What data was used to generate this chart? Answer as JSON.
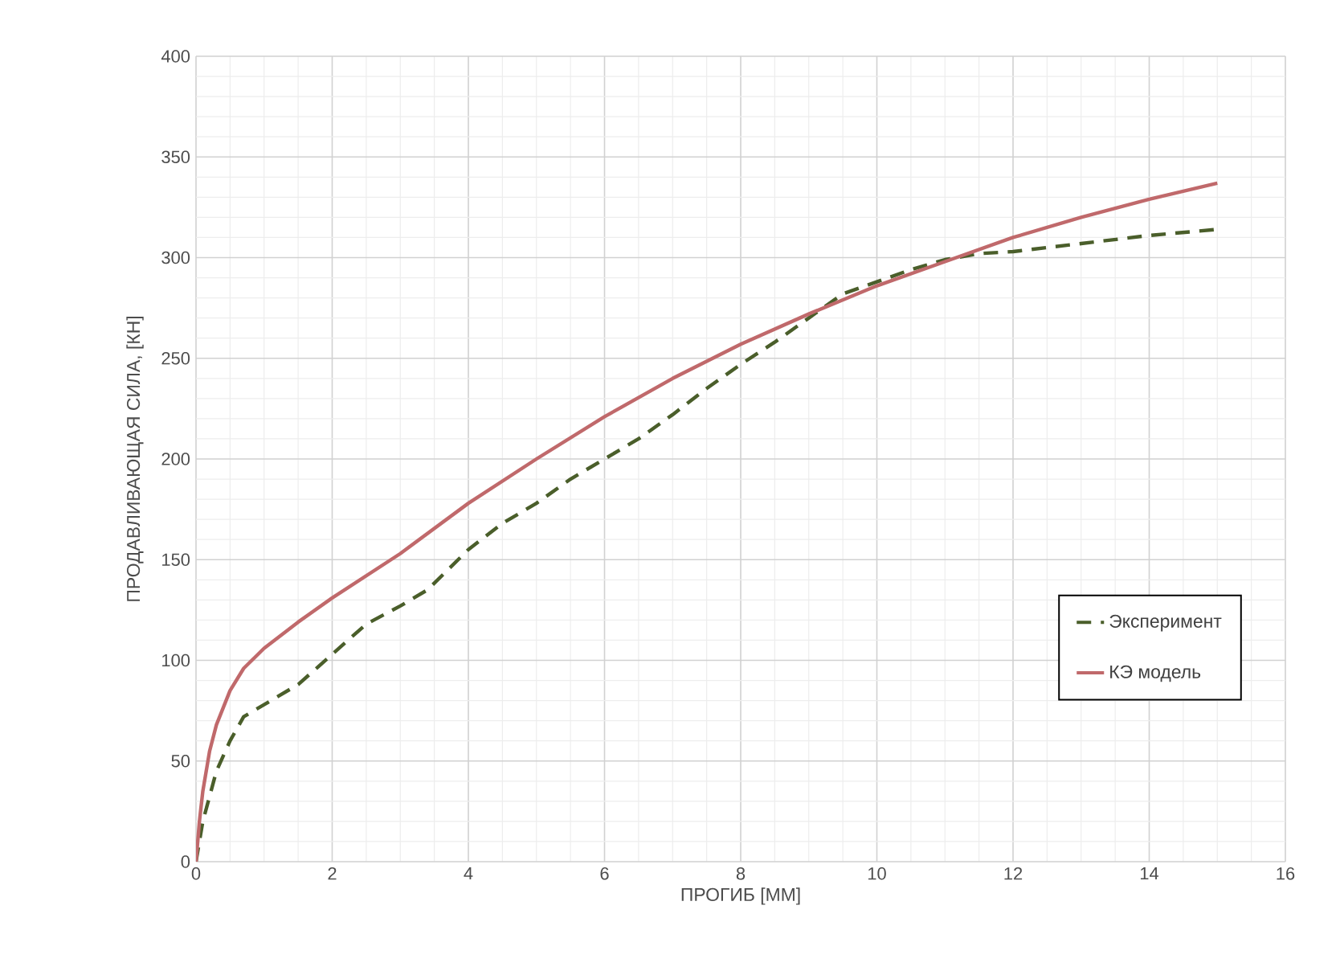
{
  "chart_data": {
    "type": "line",
    "xlabel": "ПРОГИБ [ММ]",
    "ylabel": "ПРОДАВЛИВАЮЩАЯ СИЛА, [КН]",
    "xlim": [
      0,
      16
    ],
    "ylim": [
      0,
      400
    ],
    "xticks": [
      0,
      2,
      4,
      6,
      8,
      10,
      12,
      14,
      16
    ],
    "yticks": [
      0,
      50,
      100,
      150,
      200,
      250,
      300,
      350,
      400
    ],
    "grid": true,
    "legend": "right",
    "marker": "none",
    "series": [
      {
        "name": "Эксперимент",
        "color": "#4a5e2a",
        "line_style": "dashed",
        "x": [
          0,
          0.1,
          0.3,
          0.5,
          0.7,
          1,
          1.5,
          2,
          2.5,
          3,
          3.4,
          4,
          4.5,
          5,
          5.5,
          6,
          6.5,
          7,
          7.5,
          8,
          8.5,
          9,
          9.5,
          10,
          10.5,
          11,
          11.5,
          12,
          13,
          14,
          15
        ],
        "values": [
          0,
          20,
          45,
          60,
          72,
          78,
          88,
          103,
          118,
          127,
          135,
          155,
          168,
          178,
          190,
          200,
          210,
          222,
          235,
          247,
          258,
          270,
          282,
          288,
          294,
          299,
          302,
          303,
          307,
          311,
          314
        ]
      },
      {
        "name": "КЭ модель",
        "color": "#c0696b",
        "line_style": "solid",
        "x": [
          0,
          0.05,
          0.1,
          0.2,
          0.3,
          0.5,
          0.7,
          1,
          1.5,
          2,
          3,
          4,
          5,
          6,
          7,
          8,
          9,
          10,
          11,
          12,
          13,
          14,
          15
        ],
        "values": [
          0,
          20,
          35,
          55,
          68,
          85,
          96,
          106,
          119,
          131,
          153,
          178,
          200,
          221,
          240,
          257,
          272,
          286,
          298,
          310,
          320,
          329,
          337
        ]
      }
    ]
  }
}
